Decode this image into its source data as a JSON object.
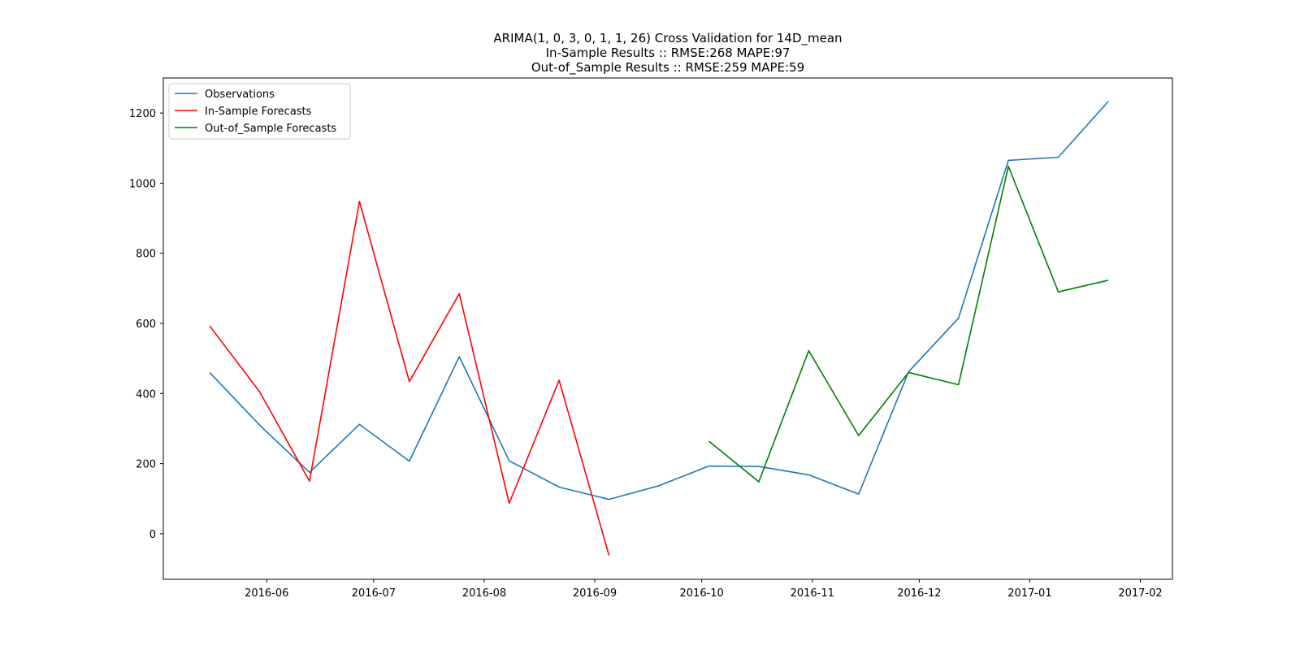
{
  "chart_data": {
    "type": "line",
    "title_lines": [
      "ARIMA(1, 0, 3, 0, 1, 1, 26) Cross Validation for 14D_mean",
      "In-Sample Results :: RMSE:268 MAPE:97",
      "Out-of_Sample Results :: RMSE:259 MAPE:59"
    ],
    "xlabel": "",
    "ylabel": "",
    "xlim": [
      "2016-05-03",
      "2017-02-10"
    ],
    "ylim": [
      -130,
      1300
    ],
    "x_ticks": [
      "2016-06-01",
      "2016-07-01",
      "2016-08-01",
      "2016-09-01",
      "2016-10-01",
      "2016-11-01",
      "2016-12-01",
      "2017-01-01",
      "2017-02-01"
    ],
    "x_tick_labels": [
      "2016-06",
      "2016-07",
      "2016-08",
      "2016-09",
      "2016-10",
      "2016-11",
      "2016-12",
      "2017-01",
      "2017-02"
    ],
    "y_ticks": [
      0,
      200,
      400,
      600,
      800,
      1000,
      1200
    ],
    "y_tick_labels": [
      "0",
      "200",
      "400",
      "600",
      "800",
      "1000",
      "1200"
    ],
    "grid": false,
    "legend_position": "upper-left",
    "series": [
      {
        "name": "Observations",
        "color": "#1f77b4",
        "x": [
          "2016-05-16",
          "2016-05-30",
          "2016-06-13",
          "2016-06-27",
          "2016-07-11",
          "2016-07-25",
          "2016-08-08",
          "2016-08-22",
          "2016-09-05",
          "2016-09-19",
          "2016-10-03",
          "2016-10-17",
          "2016-10-31",
          "2016-11-14",
          "2016-11-28",
          "2016-12-12",
          "2016-12-26",
          "2017-01-09",
          "2017-01-23"
        ],
        "y": [
          460,
          310,
          175,
          312,
          207,
          505,
          208,
          133,
          98,
          137,
          193,
          192,
          168,
          113,
          462,
          615,
          1065,
          1074,
          1233
        ]
      },
      {
        "name": "In-Sample Forecasts",
        "color": "#ff0000",
        "x": [
          "2016-05-16",
          "2016-05-30",
          "2016-06-13",
          "2016-06-27",
          "2016-07-11",
          "2016-07-25",
          "2016-08-08",
          "2016-08-22",
          "2016-09-05"
        ],
        "y": [
          593,
          405,
          150,
          948,
          434,
          685,
          87,
          438,
          -62
        ]
      },
      {
        "name": "Out-of_Sample Forecasts",
        "color": "#008000",
        "x": [
          "2016-10-03",
          "2016-10-17",
          "2016-10-31",
          "2016-11-14",
          "2016-11-28",
          "2016-12-12",
          "2016-12-26",
          "2017-01-09",
          "2017-01-23"
        ],
        "y": [
          264,
          148,
          522,
          280,
          460,
          425,
          1048,
          690,
          723
        ]
      }
    ]
  }
}
